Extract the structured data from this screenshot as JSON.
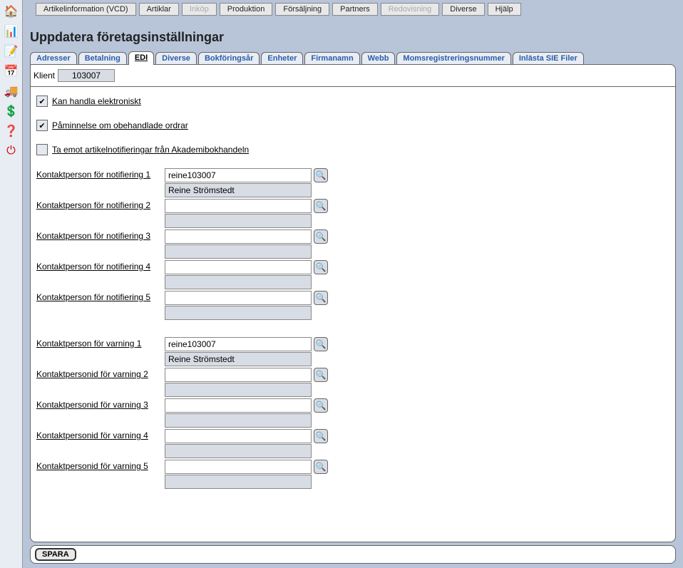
{
  "sidebar": {
    "icons": [
      "🏠",
      "📊",
      "📝",
      "📅",
      "🚚",
      "💲",
      "❓",
      "⏻"
    ]
  },
  "topmenu": {
    "items": [
      {
        "label": "Artikelinformation (VCD)",
        "disabled": false
      },
      {
        "label": "Artiklar",
        "disabled": false
      },
      {
        "label": "Inköp",
        "disabled": true
      },
      {
        "label": "Produktion",
        "disabled": false
      },
      {
        "label": "Försäljning",
        "disabled": false
      },
      {
        "label": "Partners",
        "disabled": false
      },
      {
        "label": "Redovisning",
        "disabled": true
      },
      {
        "label": "Diverse",
        "disabled": false
      },
      {
        "label": "Hjälp",
        "disabled": false
      }
    ]
  },
  "page_title": "Uppdatera företagsinställningar",
  "tabs": {
    "items": [
      "Adresser",
      "Betalning",
      "EDI",
      "Diverse",
      "Bokföringsår",
      "Enheter",
      "Firmanamn",
      "Webb",
      "Momsregistreringsnummer",
      "Inlästa SIE Filer"
    ],
    "active": "EDI"
  },
  "klient": {
    "label": "Klient",
    "value": "103007"
  },
  "checkboxes": {
    "cb1": {
      "checked": true,
      "label": "Kan handla elektroniskt"
    },
    "cb2": {
      "checked": true,
      "label": "Påminnelse om obehandlade ordrar"
    },
    "cb3": {
      "checked": false,
      "label": "Ta emot artikelnotifieringar från Akademibokhandeln"
    }
  },
  "notif": {
    "rows": [
      {
        "label": "Kontaktperson för notifiering 1",
        "value": "reine103007",
        "display": "Reine Strömstedt"
      },
      {
        "label": "Kontaktperson för notifiering 2",
        "value": "",
        "display": ""
      },
      {
        "label": "Kontaktperson för notifiering 3",
        "value": "",
        "display": ""
      },
      {
        "label": "Kontaktperson för notifiering 4",
        "value": "",
        "display": ""
      },
      {
        "label": "Kontaktperson för notifiering 5",
        "value": "",
        "display": ""
      }
    ]
  },
  "warn": {
    "rows": [
      {
        "label": "Kontaktperson för varning 1",
        "value": "reine103007",
        "display": "Reine Strömstedt"
      },
      {
        "label": "Kontaktpersonid för varning 2",
        "value": "",
        "display": ""
      },
      {
        "label": "Kontaktpersonid för varning 3",
        "value": "",
        "display": ""
      },
      {
        "label": "Kontaktpersonid för varning 4",
        "value": "",
        "display": ""
      },
      {
        "label": "Kontaktpersonid för varning 5",
        "value": "",
        "display": ""
      }
    ]
  },
  "save_label": "SPARA",
  "glyphs": {
    "check": "✔",
    "search": "🔍"
  }
}
